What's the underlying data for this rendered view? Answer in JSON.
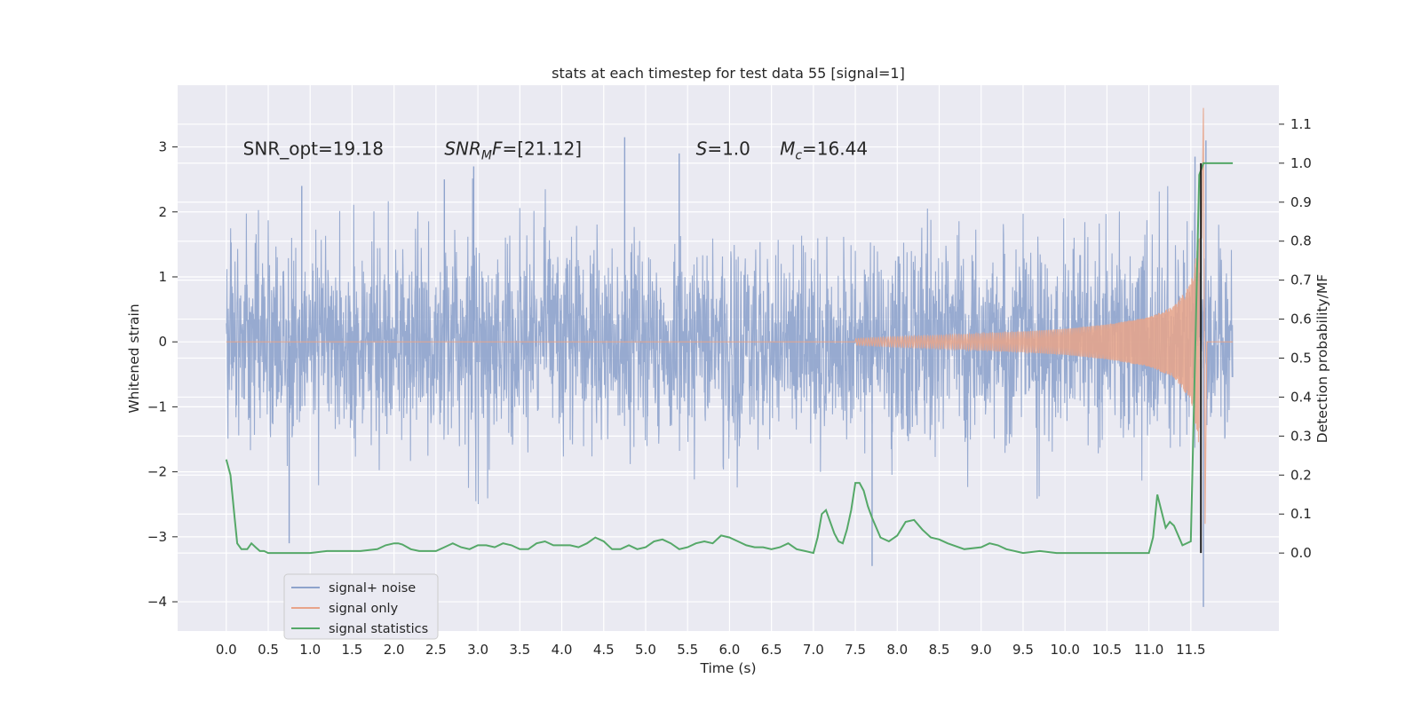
{
  "chart_data": {
    "type": "line",
    "title": "stats at each timestep for test data 55 [signal=1]",
    "xlabel": "Time (s)",
    "ylabel": "Whitened strain",
    "y2label": "Detection probability/MF",
    "xlim": [
      -0.58,
      12.55
    ],
    "ylim": [
      -4.45,
      3.95
    ],
    "y2lim": [
      -0.2,
      1.2
    ],
    "xticks": [
      0.0,
      0.5,
      1.0,
      1.5,
      2.0,
      2.5,
      3.0,
      3.5,
      4.0,
      4.5,
      5.0,
      5.5,
      6.0,
      6.5,
      7.0,
      7.5,
      8.0,
      8.5,
      9.0,
      9.5,
      10.0,
      10.5,
      11.0,
      11.5
    ],
    "xtick_labels": [
      "0.0",
      "0.5",
      "1.0",
      "1.5",
      "2.0",
      "2.5",
      "3.0",
      "3.5",
      "4.0",
      "4.5",
      "5.0",
      "5.5",
      "6.0",
      "6.5",
      "7.0",
      "7.5",
      "8.0",
      "8.5",
      "9.0",
      "9.5",
      "10.0",
      "10.5",
      "11.0",
      "11.5"
    ],
    "yticks": [
      -4,
      -3,
      -2,
      -1,
      0,
      1,
      2,
      3
    ],
    "ytick_labels": [
      "−4",
      "−3",
      "−2",
      "−1",
      "0",
      "1",
      "2",
      "3"
    ],
    "y2ticks": [
      0.0,
      0.1,
      0.2,
      0.3,
      0.4,
      0.5,
      0.6,
      0.7,
      0.8,
      0.9,
      1.0,
      1.1
    ],
    "y2tick_labels": [
      "0.0",
      "0.1",
      "0.2",
      "0.3",
      "0.4",
      "0.5",
      "0.6",
      "0.7",
      "0.8",
      "0.9",
      "1.0",
      "1.1"
    ],
    "grid": true,
    "legend_position": "lower-left",
    "colors": {
      "background": "#eaeaf2",
      "grid": "#ffffff",
      "noise": "#8ea3cc",
      "signal": "#e8a48a",
      "stat": "#55a868"
    },
    "annotations": [
      {
        "text": "SNR_opt=19.18",
        "x": 0.2,
        "y": 2.88
      },
      {
        "text_parts": [
          [
            "SNR",
            "italic"
          ],
          [
            "M",
            "italic-sub"
          ],
          [
            "F=[21.12]",
            "mixed"
          ]
        ],
        "x": 2.6,
        "y": 2.88
      },
      {
        "text_parts": [
          [
            "S",
            "italic"
          ],
          [
            "=1.0",
            "normal"
          ]
        ],
        "x": 5.6,
        "y": 2.88
      },
      {
        "text_parts": [
          [
            "M",
            "italic"
          ],
          [
            "c",
            "italic-sub"
          ],
          [
            "=16.44",
            "normal"
          ]
        ],
        "x": 6.6,
        "y": 2.88
      }
    ],
    "series": [
      {
        "name": "signal+ noise",
        "kind": "noise",
        "x_range": [
          0.0,
          12.0
        ],
        "envelope_abs": 1.85,
        "notable_spikes": [
          [
            0.75,
            -3.1
          ],
          [
            0.9,
            2.4
          ],
          [
            2.6,
            2.5
          ],
          [
            2.95,
            2.7
          ],
          [
            4.75,
            3.15
          ],
          [
            5.4,
            2.9
          ],
          [
            7.7,
            -3.45
          ],
          [
            11.55,
            2.85
          ],
          [
            11.65,
            -4.08
          ],
          [
            11.68,
            3.1
          ]
        ]
      },
      {
        "name": "signal only",
        "kind": "chirp",
        "x": [
          7.5,
          8.0,
          8.5,
          9.0,
          9.5,
          10.0,
          10.5,
          11.0,
          11.3,
          11.5,
          11.6,
          11.65,
          11.68,
          11.75,
          12.0
        ],
        "amplitude": [
          0.05,
          0.08,
          0.1,
          0.13,
          0.16,
          0.2,
          0.27,
          0.38,
          0.55,
          0.9,
          1.6,
          3.6,
          -2.8,
          0.0,
          0.0
        ]
      },
      {
        "name": "signal statistics",
        "kind": "line",
        "axis": "right",
        "x": [
          0.0,
          0.05,
          0.1,
          0.13,
          0.18,
          0.25,
          0.3,
          0.35,
          0.4,
          0.45,
          0.5,
          0.6,
          0.7,
          0.8,
          0.9,
          1.0,
          1.2,
          1.4,
          1.6,
          1.8,
          1.9,
          2.0,
          2.05,
          2.1,
          2.2,
          2.3,
          2.4,
          2.5,
          2.6,
          2.7,
          2.8,
          2.9,
          3.0,
          3.1,
          3.2,
          3.3,
          3.4,
          3.5,
          3.6,
          3.7,
          3.8,
          3.9,
          4.0,
          4.1,
          4.2,
          4.3,
          4.4,
          4.5,
          4.6,
          4.7,
          4.8,
          4.9,
          5.0,
          5.1,
          5.2,
          5.3,
          5.4,
          5.5,
          5.6,
          5.7,
          5.8,
          5.9,
          6.0,
          6.1,
          6.2,
          6.3,
          6.4,
          6.5,
          6.6,
          6.7,
          6.8,
          6.9,
          7.0,
          7.05,
          7.1,
          7.15,
          7.25,
          7.3,
          7.35,
          7.4,
          7.45,
          7.5,
          7.55,
          7.6,
          7.65,
          7.7,
          7.8,
          7.9,
          8.0,
          8.1,
          8.2,
          8.3,
          8.4,
          8.5,
          8.6,
          8.8,
          9.0,
          9.1,
          9.2,
          9.3,
          9.5,
          9.7,
          9.9,
          10.1,
          10.3,
          10.5,
          10.7,
          10.9,
          11.0,
          11.05,
          11.1,
          11.2,
          11.25,
          11.3,
          11.4,
          11.5,
          11.55,
          11.6,
          11.65,
          11.7,
          11.75,
          11.8,
          11.9,
          12.0
        ],
        "values": [
          0.24,
          0.2,
          0.09,
          0.025,
          0.01,
          0.01,
          0.025,
          0.015,
          0.005,
          0.005,
          0.0,
          0.0,
          0.0,
          0.0,
          0.0,
          0.0,
          0.005,
          0.005,
          0.005,
          0.01,
          0.02,
          0.025,
          0.025,
          0.022,
          0.01,
          0.005,
          0.005,
          0.005,
          0.015,
          0.025,
          0.015,
          0.01,
          0.02,
          0.02,
          0.015,
          0.025,
          0.02,
          0.01,
          0.01,
          0.025,
          0.03,
          0.02,
          0.02,
          0.02,
          0.015,
          0.025,
          0.04,
          0.03,
          0.01,
          0.01,
          0.02,
          0.01,
          0.015,
          0.03,
          0.035,
          0.025,
          0.01,
          0.015,
          0.025,
          0.03,
          0.025,
          0.045,
          0.04,
          0.03,
          0.02,
          0.015,
          0.015,
          0.01,
          0.015,
          0.025,
          0.01,
          0.005,
          0.0,
          0.04,
          0.1,
          0.11,
          0.05,
          0.03,
          0.025,
          0.06,
          0.11,
          0.18,
          0.18,
          0.16,
          0.12,
          0.09,
          0.04,
          0.03,
          0.045,
          0.08,
          0.085,
          0.06,
          0.04,
          0.035,
          0.025,
          0.01,
          0.015,
          0.025,
          0.02,
          0.01,
          0.0,
          0.005,
          0.0,
          0.0,
          0.0,
          0.0,
          0.0,
          0.0,
          0.0,
          0.04,
          0.15,
          0.065,
          0.08,
          0.07,
          0.02,
          0.03,
          0.5,
          0.97,
          1.0,
          1.0,
          1.0,
          1.0,
          1.0,
          1.0
        ]
      }
    ]
  }
}
